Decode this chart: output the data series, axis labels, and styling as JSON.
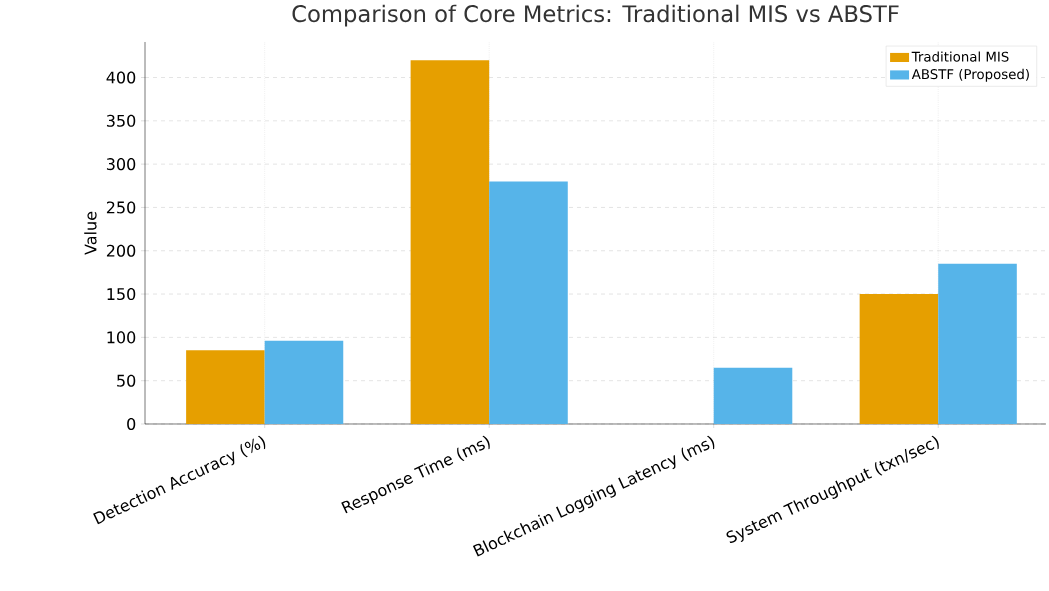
{
  "chart_data": {
    "type": "bar",
    "title": "Comparison of Core Metrics: Traditional MIS vs ABSTF",
    "ylabel": "Value",
    "categories": [
      "Detection Accuracy (%)",
      "Response Time (ms)",
      "Blockchain Logging Latency (ms)",
      "System Throughput (txn/sec)"
    ],
    "series": [
      {
        "name": "Traditional MIS",
        "color": "#e69f00",
        "values": [
          85,
          420,
          null,
          150
        ]
      },
      {
        "name": "ABSTF (Proposed)",
        "color": "#56b4e9",
        "values": [
          96,
          280,
          65,
          185
        ]
      }
    ],
    "ylim": [
      0,
      441
    ],
    "yticks": [
      0,
      50,
      100,
      150,
      200,
      250,
      300,
      350,
      400
    ],
    "grid": true,
    "legend": "top right"
  }
}
